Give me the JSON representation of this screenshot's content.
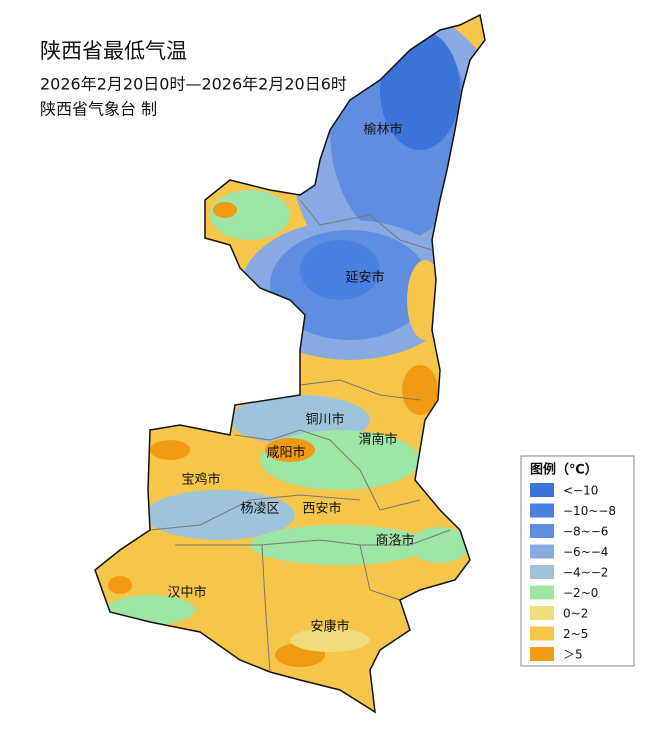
{
  "title": "陕西省最低气温",
  "subtitle": "2026年2月20日0时—2026年2月20日6时",
  "producer": "陕西省气象台  制",
  "cities": [
    "榆林市",
    "延安市",
    "铜川市",
    "渭南市",
    "咸阳市",
    "宝鸡市",
    "杨凌区",
    "西安市",
    "商洛市",
    "汉中市",
    "安康市"
  ],
  "legend": {
    "title": "图例（℃）",
    "items": [
      {
        "label": "<−10",
        "color": "#3a74d8"
      },
      {
        "label": "−10~−8",
        "color": "#4a80e0"
      },
      {
        "label": "−8~−6",
        "color": "#5f8ee0"
      },
      {
        "label": "−6~−4",
        "color": "#88aae2"
      },
      {
        "label": "−4~−2",
        "color": "#9fc4da"
      },
      {
        "label": "−2~0",
        "color": "#9ee6a6"
      },
      {
        "label": "0~2",
        "color": "#efdc7a"
      },
      {
        "label": "2~5",
        "color": "#f6c64a"
      },
      {
        "label": "＞5",
        "color": "#f29a12"
      }
    ]
  }
}
